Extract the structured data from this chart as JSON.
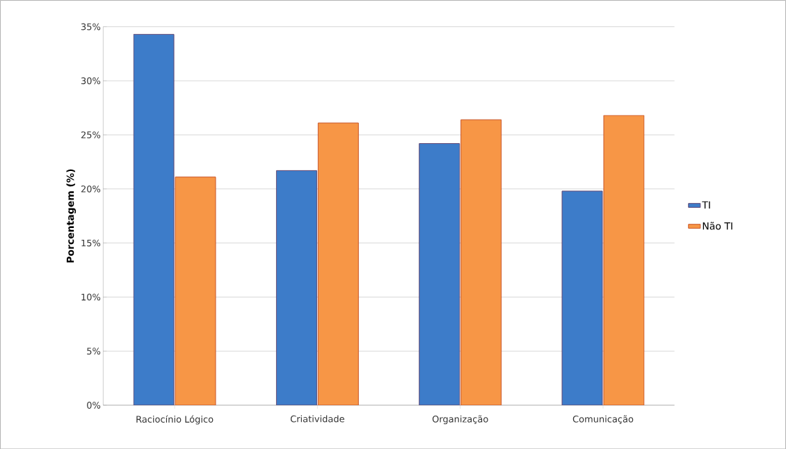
{
  "chart_data": {
    "type": "bar",
    "ylabel": "Porcentagem (%)",
    "categories": [
      "Raciocínio Lógico",
      "Criatividade",
      "Organização",
      "Comunicação"
    ],
    "series": [
      {
        "name": "TI",
        "color": "#3d7cc9",
        "values": [
          34.3,
          21.7,
          24.2,
          19.8
        ]
      },
      {
        "name": "Não TI",
        "color": "#f79646",
        "values": [
          21.1,
          26.1,
          26.4,
          26.8
        ]
      }
    ],
    "ylim": [
      0,
      35
    ],
    "yticks": [
      {
        "value": 0,
        "label": "0%"
      },
      {
        "value": 5,
        "label": "5%"
      },
      {
        "value": 10,
        "label": "10%"
      },
      {
        "value": 15,
        "label": "15%"
      },
      {
        "value": 20,
        "label": "20%"
      },
      {
        "value": 25,
        "label": "25%"
      },
      {
        "value": 30,
        "label": "30%"
      },
      {
        "value": 35,
        "label": "35%"
      }
    ],
    "grid": "y",
    "legend": "right"
  }
}
